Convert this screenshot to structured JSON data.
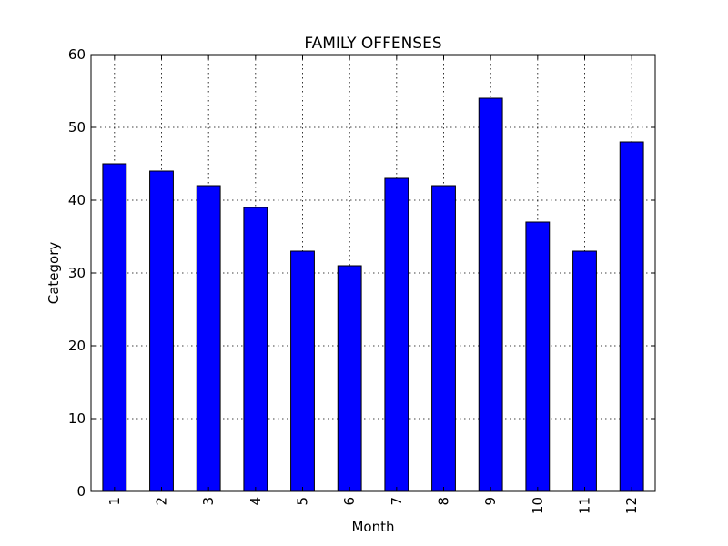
{
  "chart_data": {
    "type": "bar",
    "title": "FAMILY OFFENSES",
    "xlabel": "Month",
    "ylabel": "Category",
    "categories": [
      "1",
      "2",
      "3",
      "4",
      "5",
      "6",
      "7",
      "8",
      "9",
      "10",
      "11",
      "12"
    ],
    "values": [
      45,
      44,
      42,
      39,
      33,
      31,
      43,
      42,
      54,
      37,
      33,
      48
    ],
    "ylim": [
      0,
      60
    ],
    "yticks": [
      "0",
      "10",
      "20",
      "30",
      "40",
      "50",
      "60"
    ],
    "grid": true,
    "legend": "none",
    "colors": {
      "bar": "#0000ff",
      "edge": "#000000"
    }
  }
}
